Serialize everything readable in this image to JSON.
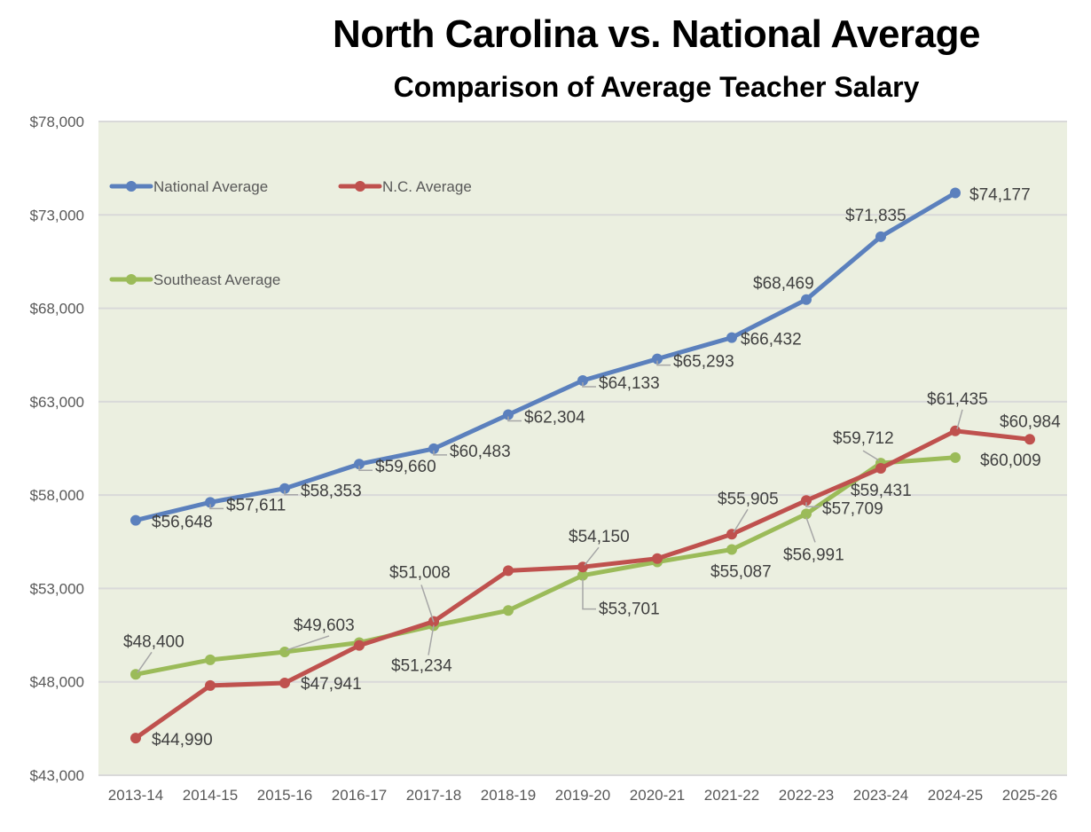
{
  "chart_data": {
    "type": "line",
    "title": "North Carolina vs. National Average",
    "subtitle": "Comparison of Average Teacher Salary",
    "xlabel": "",
    "ylabel": "",
    "ylim": [
      43000,
      78000
    ],
    "yticks": [
      43000,
      48000,
      53000,
      58000,
      63000,
      68000,
      73000,
      78000
    ],
    "ytick_labels": [
      "$43,000",
      "$48,000",
      "$53,000",
      "$58,000",
      "$63,000",
      "$68,000",
      "$73,000",
      "$78,000"
    ],
    "grid": true,
    "legend_position": "top-left",
    "background": "#ebefe0",
    "categories": [
      "2013-14",
      "2014-15",
      "2015-16",
      "2016-17",
      "2017-18",
      "2018-19",
      "2019-20",
      "2020-21",
      "2021-22",
      "2022-23",
      "2023-24",
      "2024-25",
      "2025-26"
    ],
    "series": [
      {
        "name": "National Average",
        "color": "#5b80bd",
        "values": [
          56648,
          57611,
          58353,
          59660,
          60483,
          62304,
          64133,
          65293,
          66432,
          68469,
          71835,
          74177,
          null
        ],
        "labels": [
          "$56,648",
          "$57,611",
          "$58,353",
          "$59,660",
          "$60,483",
          "$62,304",
          "$64,133",
          "$65,293",
          "$66,432",
          "$68,469",
          "$71,835",
          "$74,177",
          null
        ]
      },
      {
        "name": "N.C. Average",
        "color": "#bf514e",
        "values": [
          44990,
          47800,
          47941,
          49950,
          51234,
          53950,
          54150,
          54600,
          55905,
          57709,
          59431,
          61435,
          60984
        ],
        "labels": [
          "$44,990",
          null,
          "$47,941",
          null,
          "$51,234",
          null,
          "$54,150",
          null,
          "$55,905",
          "$57,709",
          "$59,431",
          "$61,435",
          "$60,984"
        ]
      },
      {
        "name": "Southeast  Average",
        "color": "#9bbb59",
        "values": [
          48400,
          49180,
          49603,
          50100,
          51008,
          51820,
          53701,
          54420,
          55087,
          56991,
          59712,
          60009,
          null
        ],
        "labels": [
          "$48,400",
          null,
          "$49,603",
          null,
          "$51,008",
          null,
          "$53,701",
          null,
          "$55,087",
          "$56,991",
          "$59,712",
          "$60,009",
          null
        ]
      }
    ]
  }
}
